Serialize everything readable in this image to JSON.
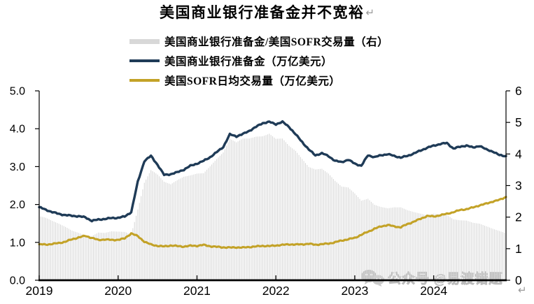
{
  "title": "美国商业银行准备金并不宽裕",
  "return_mark": "↵",
  "legend": [
    {
      "label": "美国商业银行准备金/美国SOFR交易量（右）",
      "swatch": "gray-bar",
      "color": "#D8D8D8"
    },
    {
      "label": "美国商业银行准备金（万亿美元）",
      "swatch": "navy-line",
      "color": "#1F3B57"
    },
    {
      "label": "美国SOFR日均交易量（万亿美元）",
      "swatch": "gold-line",
      "color": "#C3A227"
    }
  ],
  "watermark": {
    "icon": "wechat-icon",
    "text": "公众号 @易渡错题"
  },
  "colors": {
    "bar": "#D8D8D8",
    "reserves_line": "#1F3B57",
    "sofr_line": "#C3A227",
    "axis": "#000000",
    "watermark": "#b0b0b0"
  },
  "chart_data": {
    "type": "combo",
    "title": "美国商业银行准备金并不宽裕",
    "x_axis": {
      "start": "2019-01",
      "freq": "monthly",
      "points": 72,
      "tick_labels": [
        "2019",
        "2020",
        "2021",
        "2022",
        "2023",
        "2024"
      ]
    },
    "left_axis": {
      "range": [
        0,
        5
      ],
      "ticks": [
        "0.0",
        "1.0",
        "2.0",
        "3.0",
        "4.0",
        "5.0"
      ]
    },
    "right_axis": {
      "range": [
        0,
        6
      ],
      "ticks": [
        "0",
        "1",
        "2",
        "3",
        "4",
        "5",
        "6"
      ]
    },
    "grid": false,
    "legend_position": "top",
    "series": [
      {
        "name": "美国商业银行准备金/美国SOFR交易量（右）",
        "type": "bar",
        "axis": "right",
        "color": "#D8D8D8",
        "values": [
          2.03,
          1.98,
          1.88,
          1.79,
          1.69,
          1.57,
          1.5,
          1.42,
          1.4,
          1.51,
          1.5,
          1.55,
          1.54,
          1.53,
          1.45,
          2.24,
          3.09,
          3.49,
          3.35,
          3.12,
          3.04,
          3.17,
          3.28,
          3.32,
          3.38,
          3.39,
          3.61,
          3.84,
          4.05,
          4.48,
          4.37,
          4.49,
          4.49,
          4.55,
          4.56,
          4.64,
          4.48,
          4.49,
          4.26,
          4.1,
          3.84,
          3.59,
          3.51,
          3.53,
          3.38,
          3.15,
          2.97,
          2.94,
          2.75,
          2.52,
          2.58,
          2.39,
          2.32,
          2.28,
          2.31,
          2.31,
          2.22,
          2.16,
          2.11,
          2.06,
          2.11,
          2.09,
          2.07,
          1.93,
          1.9,
          1.89,
          1.82,
          1.79,
          1.71,
          1.63,
          1.56,
          1.49
        ]
      },
      {
        "name": "美国商业银行准备金（万亿美元）",
        "type": "line",
        "axis": "left",
        "color": "#1F3B57",
        "values": [
          1.93,
          1.86,
          1.8,
          1.75,
          1.72,
          1.7,
          1.69,
          1.66,
          1.57,
          1.6,
          1.62,
          1.64,
          1.65,
          1.68,
          1.8,
          2.6,
          3.15,
          3.28,
          3.05,
          2.78,
          2.8,
          2.85,
          2.92,
          3.02,
          3.08,
          3.15,
          3.25,
          3.38,
          3.52,
          3.85,
          3.8,
          3.86,
          3.95,
          4.05,
          4.15,
          4.18,
          4.12,
          4.18,
          4.05,
          3.85,
          3.65,
          3.45,
          3.3,
          3.35,
          3.28,
          3.15,
          3.12,
          3.18,
          3.08,
          3.02,
          3.3,
          3.25,
          3.3,
          3.33,
          3.28,
          3.24,
          3.28,
          3.35,
          3.42,
          3.5,
          3.55,
          3.6,
          3.62,
          3.48,
          3.52,
          3.56,
          3.5,
          3.55,
          3.45,
          3.4,
          3.3,
          3.28
        ]
      },
      {
        "name": "美国SOFR日均交易量（万亿美元）",
        "type": "line",
        "axis": "left",
        "color": "#C3A227",
        "values": [
          0.95,
          0.94,
          0.96,
          0.98,
          1.02,
          1.08,
          1.13,
          1.17,
          1.12,
          1.06,
          1.08,
          1.06,
          1.07,
          1.1,
          1.24,
          1.16,
          1.02,
          0.94,
          0.91,
          0.89,
          0.92,
          0.9,
          0.89,
          0.91,
          0.91,
          0.93,
          0.9,
          0.88,
          0.87,
          0.86,
          0.87,
          0.86,
          0.88,
          0.89,
          0.91,
          0.9,
          0.92,
          0.93,
          0.95,
          0.94,
          0.95,
          0.96,
          0.94,
          0.95,
          0.97,
          1.0,
          1.05,
          1.08,
          1.12,
          1.2,
          1.28,
          1.36,
          1.42,
          1.46,
          1.42,
          1.4,
          1.48,
          1.55,
          1.62,
          1.7,
          1.68,
          1.72,
          1.75,
          1.8,
          1.85,
          1.88,
          1.92,
          1.98,
          2.02,
          2.08,
          2.12,
          2.2
        ]
      }
    ]
  }
}
